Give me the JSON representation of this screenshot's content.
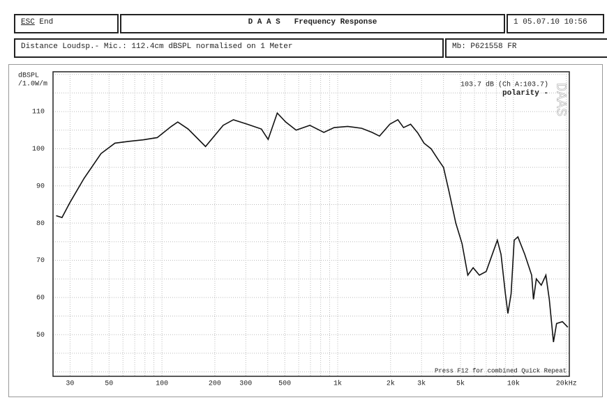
{
  "header": {
    "escape": "ESC",
    "escape_action": "End",
    "title": "D A A S   Frequency Response",
    "slot": "1",
    "timestamp": "05.07.10 10:56",
    "info": "Distance Loudsp.- Mic.: 112.4cm dBSPL normalised on 1 Meter",
    "measurement": "Mb: P621558 FR"
  },
  "chart_data": {
    "type": "line",
    "y_label": "dBSPL\n/1.0W/m",
    "watermark": "DAAS",
    "annotations": [
      "103.7 dB (Ch A:103.7)",
      "polarity -",
      "Press F12 for combined Quick Repeat"
    ],
    "x": [
      25,
      27,
      30,
      36,
      45,
      54,
      65,
      78,
      94,
      113,
      123,
      141,
      177,
      223,
      255,
      306,
      368,
      402,
      453,
      506,
      580,
      694,
      834,
      955,
      1140,
      1370,
      1570,
      1730,
      1980,
      2200,
      2370,
      2600,
      2850,
      3100,
      3400,
      3740,
      4000,
      4300,
      4700,
      5100,
      5500,
      5900,
      6400,
      7000,
      7700,
      8100,
      8500,
      9000,
      9300,
      9700,
      10100,
      10600,
      11600,
      12700,
      13000,
      13500,
      14400,
      15300,
      16000,
      16900,
      17600,
      19000,
      20400
    ],
    "values": [
      82,
      81.5,
      85.6,
      92,
      98.7,
      101.5,
      102,
      102.4,
      103,
      106,
      107.2,
      105.3,
      100.6,
      106.3,
      107.8,
      106.6,
      105.3,
      102.5,
      109.6,
      107.2,
      105,
      106.3,
      104.4,
      105.7,
      106,
      105.5,
      104.4,
      103.4,
      106.6,
      107.8,
      105.7,
      106.6,
      104.3,
      101.5,
      100,
      97,
      95,
      88.5,
      80,
      74.5,
      66,
      68,
      66,
      67,
      72.5,
      75.4,
      71.6,
      61,
      55.7,
      61,
      75.4,
      76.3,
      71.6,
      66,
      59.5,
      65,
      63.3,
      66,
      59.5,
      48,
      53,
      53.5,
      52
    ],
    "color": "#111111",
    "xscale": "log",
    "xlim": [
      24,
      20800
    ],
    "ylim": [
      38.8,
      120.7
    ],
    "xticks": [
      30,
      50,
      100,
      200,
      300,
      500,
      {
        "value": 1000,
        "label": "1k"
      },
      {
        "value": 2000,
        "label": "2k"
      },
      {
        "value": 3000,
        "label": "3k"
      },
      {
        "value": 5000,
        "label": "5k"
      },
      {
        "value": 10000,
        "label": "10k"
      },
      {
        "value": 20000,
        "label": "20kHz"
      }
    ],
    "yticks": [
      50,
      60,
      70,
      80,
      90,
      100,
      110
    ],
    "xgrid": [
      30,
      40,
      50,
      60,
      70,
      80,
      90,
      100,
      200,
      300,
      400,
      500,
      600,
      700,
      800,
      900,
      1000,
      2000,
      3000,
      4000,
      5000,
      6000,
      7000,
      8000,
      9000,
      10000,
      20000
    ],
    "ygrid": [
      40,
      45,
      50,
      55,
      60,
      65,
      70,
      75,
      80,
      85,
      90,
      95,
      100,
      105,
      110,
      115,
      120
    ],
    "grid": true
  }
}
